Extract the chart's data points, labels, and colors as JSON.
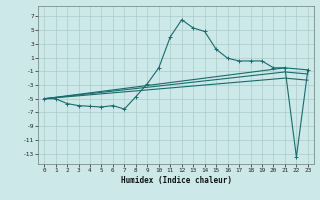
{
  "xlabel": "Humidex (Indice chaleur)",
  "xlim": [
    -0.5,
    23.5
  ],
  "ylim": [
    -14.5,
    8.5
  ],
  "yticks": [
    7,
    5,
    3,
    1,
    -1,
    -3,
    -5,
    -7,
    -9,
    -11,
    -13
  ],
  "xticks": [
    0,
    1,
    2,
    3,
    4,
    5,
    6,
    7,
    8,
    9,
    10,
    11,
    12,
    13,
    14,
    15,
    16,
    17,
    18,
    19,
    20,
    21,
    22,
    23
  ],
  "bg_color": "#cce8e8",
  "grid_color": "#aacccc",
  "line_color": "#1a6b6b",
  "line1_x": [
    0,
    1,
    2,
    3,
    4,
    5,
    6,
    7,
    8,
    9,
    10,
    11,
    12,
    13,
    14,
    15,
    16,
    17,
    18,
    19,
    20,
    21,
    22,
    23
  ],
  "line1_y": [
    -5,
    -5,
    -5.7,
    -6,
    -6.1,
    -6.2,
    -6,
    -6.5,
    -4.7,
    -2.8,
    -0.5,
    4,
    6.5,
    5.3,
    4.8,
    2.2,
    0.9,
    0.5,
    0.5,
    0.5,
    -0.5,
    -0.5,
    -13.5,
    -0.8
  ],
  "line2_x": [
    0,
    21,
    23
  ],
  "line2_y": [
    -5,
    -0.5,
    -0.8
  ],
  "line3_x": [
    0,
    21,
    23
  ],
  "line3_y": [
    -5,
    -1.1,
    -1.4
  ],
  "line4_x": [
    0,
    21,
    23
  ],
  "line4_y": [
    -5,
    -2.0,
    -2.3
  ],
  "marker_size": 2.5,
  "line_width": 0.8
}
